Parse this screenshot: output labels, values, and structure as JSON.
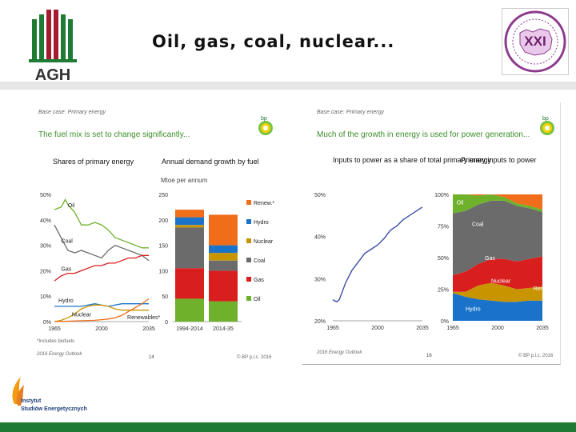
{
  "slide": {
    "title": "Oil, gas, coal, nuclear...",
    "agh_logo_text": "AGH",
    "seal_text": "XXI",
    "institute_line1": "Instytut",
    "institute_line2": "Studiów Energetycznych"
  },
  "left_panel": {
    "case": "Base case: Primary energy",
    "headline": "The fuel mix is set to change significantly...",
    "sub_left": "Shares of primary energy",
    "sub_right": "Annual demand growth by fuel",
    "unit": "Mtoe per annum",
    "footnote": "*Includes biofuels",
    "source": "2016 Energy Outlook",
    "page": "14",
    "copyright": "© BP p.l.c. 2016"
  },
  "right_panel": {
    "case": "Base case: Primary energy",
    "headline": "Much of the growth in energy is used for power generation...",
    "sub_left": "Inputs to power as a share of total primary energy",
    "sub_right": "Primary inputs to power",
    "source": "2016 Energy Outlook",
    "page": "16",
    "copyright": "© BP p.l.c. 2016"
  },
  "colors": {
    "green_brand": "#1f7a34",
    "oil": "#6fb12a",
    "coal": "#6b6b6b",
    "gas": "#d91e1e",
    "nuclear": "#f2c500",
    "hydro": "#1a73c9",
    "renew": "#f06d1a",
    "headline_green": "#3b8d2a",
    "line_blue": "#3b4fa8"
  },
  "chart_data": [
    {
      "type": "line",
      "title": "Shares of primary energy",
      "x_ticks": [
        "1965",
        "2000",
        "2035"
      ],
      "y_ticks": [
        "0%",
        "10%",
        "20%",
        "30%",
        "40%",
        "50%"
      ],
      "ylim": [
        0,
        50
      ],
      "series": [
        {
          "name": "Oil",
          "x": [
            1965,
            1970,
            1973,
            1975,
            1980,
            1985,
            1990,
            1995,
            2000,
            2005,
            2010,
            2015,
            2020,
            2025,
            2030,
            2035
          ],
          "values": [
            44,
            45,
            48,
            46,
            43,
            38,
            38,
            39,
            38,
            36,
            33,
            32,
            31,
            30,
            29,
            29
          ]
        },
        {
          "name": "Coal",
          "x": [
            1965,
            1970,
            1975,
            1980,
            1985,
            1990,
            1995,
            2000,
            2005,
            2010,
            2015,
            2020,
            2025,
            2030,
            2035
          ],
          "values": [
            38,
            33,
            28,
            27,
            28,
            27,
            26,
            25,
            28,
            30,
            29,
            28,
            27,
            26,
            24
          ]
        },
        {
          "name": "Gas",
          "x": [
            1965,
            1970,
            1975,
            1980,
            1985,
            1990,
            1995,
            2000,
            2005,
            2010,
            2015,
            2020,
            2025,
            2030,
            2035
          ],
          "values": [
            16,
            18,
            19,
            19,
            20,
            21,
            22,
            22,
            23,
            23,
            24,
            25,
            25,
            26,
            26
          ]
        },
        {
          "name": "Hydro",
          "x": [
            1965,
            1975,
            1985,
            1995,
            2005,
            2015,
            2025,
            2035
          ],
          "values": [
            6,
            6,
            6,
            7,
            6,
            7,
            7,
            7
          ]
        },
        {
          "name": "Nuclear",
          "x": [
            1965,
            1970,
            1975,
            1980,
            1985,
            1990,
            1995,
            2000,
            2005,
            2010,
            2015,
            2020,
            2025,
            2030,
            2035
          ],
          "values": [
            0,
            0.5,
            1.5,
            3,
            5,
            6,
            6.5,
            6.5,
            6,
            5,
            4.5,
            4.5,
            4.5,
            4.5,
            4.5
          ]
        },
        {
          "name": "Renewables*",
          "x": [
            1965,
            1995,
            2005,
            2010,
            2015,
            2020,
            2025,
            2030,
            2035
          ],
          "values": [
            0,
            0.5,
            1,
            1.5,
            2.5,
            4,
            5.5,
            7,
            9
          ]
        }
      ]
    },
    {
      "type": "bar",
      "title": "Annual demand growth by fuel",
      "ylabel": "Mtoe per annum",
      "categories": [
        "1994-2014",
        "2014-35"
      ],
      "y_ticks": [
        "0",
        "50",
        "100",
        "150",
        "200",
        "250"
      ],
      "ylim": [
        0,
        250
      ],
      "series": [
        {
          "name": "Oil",
          "values": [
            45,
            40
          ]
        },
        {
          "name": "Gas",
          "values": [
            60,
            60
          ]
        },
        {
          "name": "Coal",
          "values": [
            80,
            20
          ]
        },
        {
          "name": "Nuclear",
          "values": [
            5,
            15
          ]
        },
        {
          "name": "Hydro",
          "values": [
            15,
            15
          ]
        },
        {
          "name": "Renew.*",
          "values": [
            15,
            60
          ]
        }
      ],
      "legend": [
        "Renew.*",
        "Hydro",
        "Nuclear",
        "Coal",
        "Gas",
        "Oil"
      ]
    },
    {
      "type": "line",
      "title": "Inputs to power as a share of total primary energy",
      "x_ticks": [
        "1965",
        "2000",
        "2035"
      ],
      "y_ticks": [
        "20%",
        "30%",
        "40%",
        "50%"
      ],
      "ylim": [
        20,
        50
      ],
      "series": [
        {
          "name": "",
          "x": [
            1965,
            1968,
            1970,
            1975,
            1980,
            1985,
            1990,
            1995,
            2000,
            2005,
            2010,
            2015,
            2020,
            2025,
            2030,
            2035
          ],
          "values": [
            25,
            24.5,
            25,
            29,
            32,
            34,
            36,
            37,
            38,
            39.5,
            41.5,
            42.5,
            44,
            45,
            46,
            47
          ]
        }
      ]
    },
    {
      "type": "area",
      "title": "Primary inputs to power",
      "x_ticks": [
        "1965",
        "2000",
        "2035"
      ],
      "y_ticks": [
        "0%",
        "25%",
        "50%",
        "75%",
        "100%"
      ],
      "ylim": [
        0,
        100
      ],
      "stack_order": [
        "Hydro",
        "Nuclear",
        "Gas",
        "Coal",
        "Oil",
        "Renew."
      ],
      "x": [
        1965,
        1975,
        1985,
        1995,
        2005,
        2015,
        2025,
        2035
      ],
      "series": [
        {
          "name": "Hydro",
          "values": [
            22,
            19,
            17,
            16,
            15,
            15,
            16,
            16
          ]
        },
        {
          "name": "Nuclear",
          "values": [
            1,
            4,
            11,
            14,
            13,
            10,
            10,
            11
          ]
        },
        {
          "name": "Gas",
          "values": [
            13,
            16,
            17,
            19,
            21,
            22,
            23,
            24
          ]
        },
        {
          "name": "Coal",
          "values": [
            49,
            48,
            47,
            46,
            46,
            44,
            40,
            35
          ]
        },
        {
          "name": "Oil",
          "values": [
            15,
            13,
            7,
            5,
            3,
            2,
            2,
            2
          ]
        },
        {
          "name": "Renew.",
          "values": [
            0,
            0,
            1,
            0,
            2,
            7,
            9,
            12
          ]
        }
      ]
    }
  ]
}
